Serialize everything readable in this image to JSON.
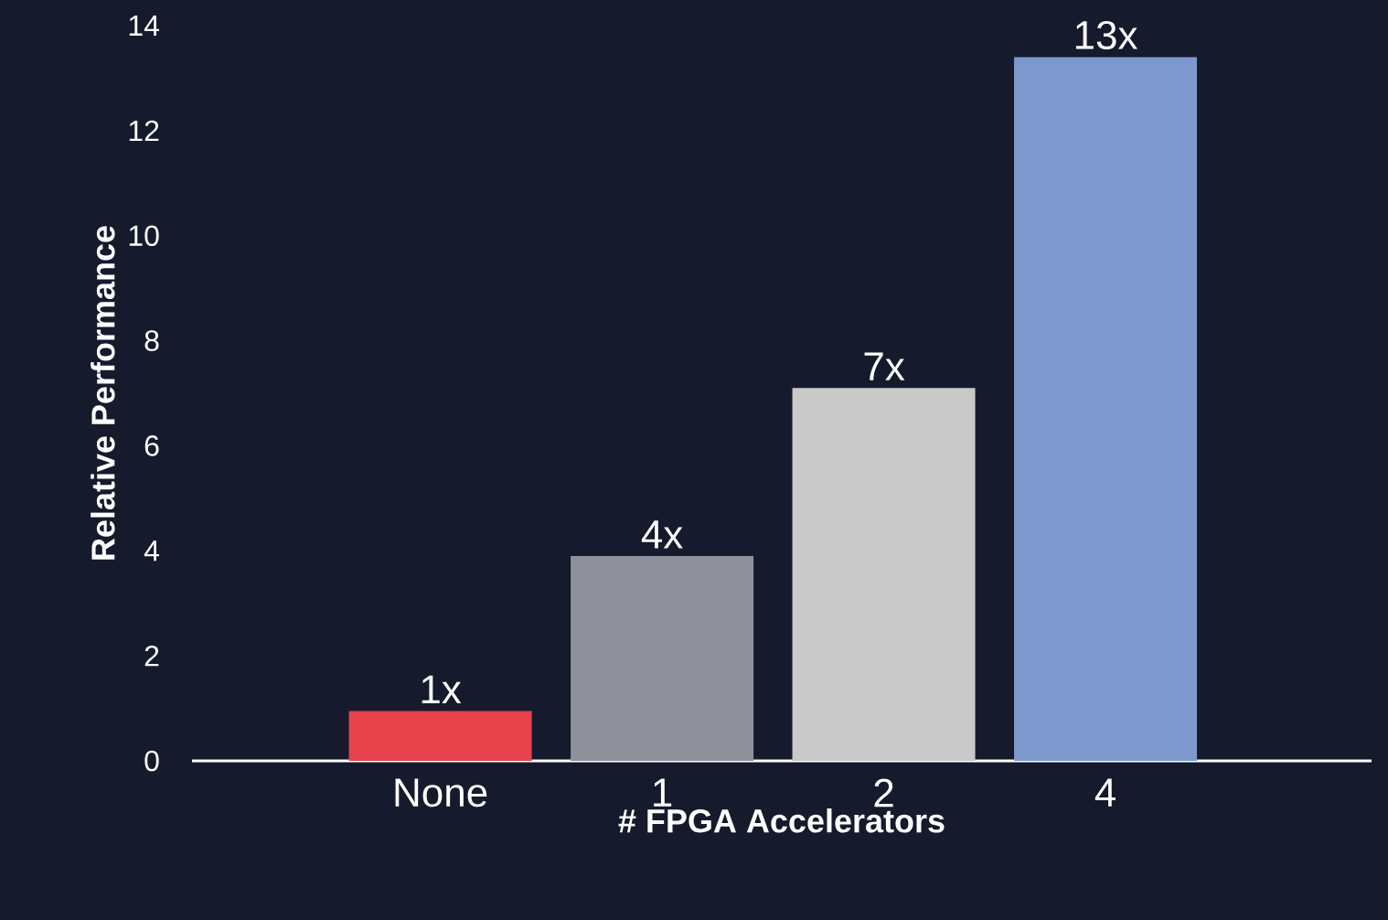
{
  "chart_data": {
    "type": "bar",
    "xlabel": "# FPGA Accelerators",
    "ylabel": "Relative  Performance",
    "categories": [
      "None",
      "1",
      "2",
      "4"
    ],
    "values": [
      0.95,
      3.9,
      7.1,
      13.4
    ],
    "value_labels": [
      "1x",
      "4x",
      "7x",
      "13x"
    ],
    "colors": [
      "#e8434c",
      "#8e909c",
      "#c9c9c9",
      "#7d98cc"
    ],
    "ylim": [
      0,
      14
    ],
    "yticks": [
      0,
      2,
      4,
      6,
      8,
      10,
      12,
      14
    ]
  }
}
